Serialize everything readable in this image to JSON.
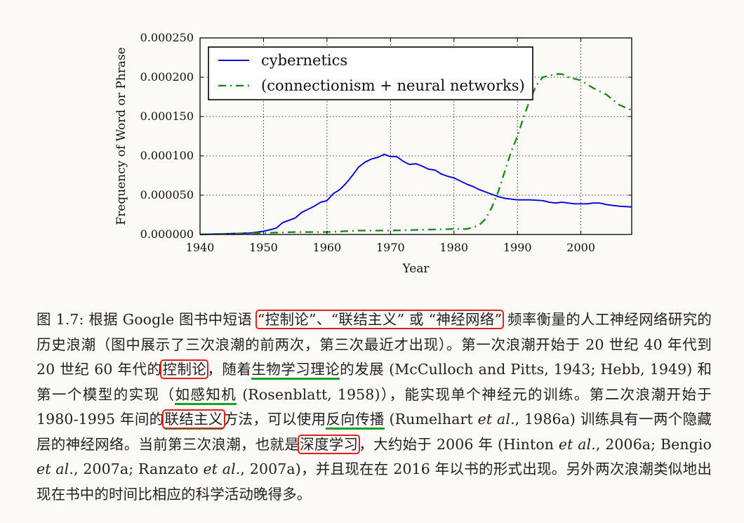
{
  "chart_data": {
    "type": "line",
    "xlabel": "Year",
    "ylabel": "Frequency of Word or Phrase",
    "xlim": [
      1940,
      2008
    ],
    "ylim": [
      0,
      0.00025
    ],
    "xticks": [
      "1940",
      "1950",
      "1960",
      "1970",
      "1980",
      "1990",
      "2000"
    ],
    "yticks": [
      "0.000000",
      "0.000050",
      "0.000100",
      "0.000150",
      "0.000200",
      "0.000250"
    ],
    "grid": true,
    "legend_position": "top-left",
    "series": [
      {
        "name": "cybernetics",
        "style": "solid",
        "color": "#0000dd",
        "x": [
          1940,
          1944,
          1948,
          1950,
          1951,
          1952,
          1953,
          1954,
          1955,
          1956,
          1957,
          1958,
          1959,
          1960,
          1961,
          1962,
          1963,
          1964,
          1965,
          1966,
          1967,
          1968,
          1969,
          1970,
          1971,
          1972,
          1973,
          1974,
          1975,
          1976,
          1977,
          1978,
          1979,
          1980,
          1981,
          1982,
          1983,
          1984,
          1985,
          1986,
          1987,
          1988,
          1989,
          1990,
          1992,
          1994,
          1995,
          1996,
          1997,
          1998,
          1999,
          2000,
          2001,
          2002,
          2003,
          2004,
          2005,
          2006,
          2008
        ],
        "y": [
          0.0,
          1e-06,
          2e-06,
          4e-06,
          6e-06,
          8e-06,
          1.5e-05,
          1.8e-05,
          2.1e-05,
          2.8e-05,
          3.2e-05,
          3.6e-05,
          4.1e-05,
          4.3e-05,
          5.2e-05,
          5.7e-05,
          6.5e-05,
          7.5e-05,
          8.6e-05,
          9.2e-05,
          9.6e-05,
          9.8e-05,
          0.000102,
          9.9e-05,
          9.9e-05,
          9.3e-05,
          8.9e-05,
          9e-05,
          8.7e-05,
          8.3e-05,
          8.2e-05,
          7.7e-05,
          7.4e-05,
          7.2e-05,
          6.8e-05,
          6.4e-05,
          6.1e-05,
          5.7e-05,
          5.4e-05,
          5.1e-05,
          4.8e-05,
          4.6e-05,
          4.5e-05,
          4.4e-05,
          4.4e-05,
          4.3e-05,
          4.1e-05,
          4e-05,
          4.1e-05,
          4e-05,
          3.9e-05,
          3.9e-05,
          3.9e-05,
          4e-05,
          4e-05,
          3.8e-05,
          3.7e-05,
          3.6e-05,
          3.5e-05
        ]
      },
      {
        "name": "(connectionism + neural networks)",
        "style": "dashdot",
        "color": "#228822",
        "x": [
          1940,
          1950,
          1955,
          1960,
          1965,
          1970,
          1975,
          1980,
          1982,
          1983,
          1984,
          1985,
          1986,
          1987,
          1988,
          1989,
          1990,
          1991,
          1992,
          1993,
          1994,
          1995,
          1996,
          1997,
          1998,
          2000,
          2002,
          2004,
          2006,
          2008
        ],
        "y": [
          0.0,
          2e-06,
          3e-06,
          3e-06,
          5e-06,
          5e-06,
          6e-06,
          7e-06,
          7e-06,
          9e-06,
          1.2e-05,
          2e-05,
          3.5e-05,
          5.5e-05,
          8e-05,
          0.000105,
          0.000125,
          0.00015,
          0.000172,
          0.00019,
          0.0002,
          0.000202,
          0.000204,
          0.000204,
          0.0002,
          0.000196,
          0.000186,
          0.000178,
          0.000165,
          0.000158
        ]
      }
    ]
  },
  "caption": {
    "p01": "图 1.7: 根据 Google 图书中短语 ",
    "b01": "“控制论”、“联结主义” 或 “神经网络”",
    "p02": " 频率衡量的人工神经网络研究的历史浪潮（图中展示了三次浪潮的前两次，第三次最近才出现）。第一次浪潮开始于 20 世纪 40 年代到 20 世纪 60 年代的",
    "b02": "控制论",
    "p03": "，随着",
    "u01": "生物学习理论",
    "p04": "的发展 (McCulloch and Pitts, 1943; Hebb, 1949) 和第一个模型的实现（",
    "u02": "如感知机",
    "p05": " (Rosenblatt, 1958)），能实现单个神经元的训练。第二次浪潮开始于 1980-1995 年间的",
    "b03": "联结主义",
    "p06": "方法，可以使用",
    "u03": "反向传播",
    "p07": " (Rumelhart ",
    "i01": "et al.",
    "p08": ", 1986a) 训练具有一两个隐藏层的神经网络。当前第三次浪潮，也就是",
    "b04": "深度学习",
    "p09": "，大约始于 2006 年 (Hinton ",
    "i02": "et al.",
    "p10": ", 2006a; Bengio ",
    "i03": "et al.",
    "p11": ", 2007a; Ranzato ",
    "i04": "et al.",
    "p12": ", 2007a)，并且现在在 2016 年以书的形式出现。另外两次浪潮类似地出现在书中的时间比相应的科学活动晚得多。"
  }
}
